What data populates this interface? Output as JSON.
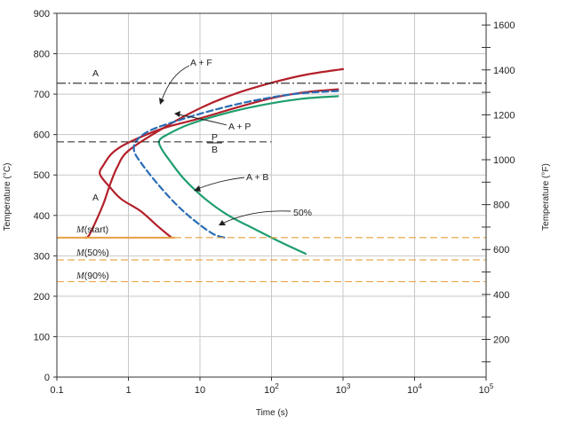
{
  "chart_data": {
    "type": "line",
    "title": "",
    "xlabel": "Time (s)",
    "ylabel": "Temperature (°C)",
    "y2label": "Temperature (°F)",
    "xscale": "log",
    "xlim": [
      0.1,
      100000
    ],
    "ylim": [
      0,
      900
    ],
    "x_ticks": [
      {
        "v": 0.1,
        "base": "0.1",
        "exp": ""
      },
      {
        "v": 1,
        "base": "1",
        "exp": ""
      },
      {
        "v": 10,
        "base": "10",
        "exp": ""
      },
      {
        "v": 100,
        "base": "10",
        "exp": "2"
      },
      {
        "v": 1000,
        "base": "10",
        "exp": "3"
      },
      {
        "v": 10000,
        "base": "10",
        "exp": "4"
      },
      {
        "v": 100000,
        "base": "10",
        "exp": "5"
      }
    ],
    "y_ticks": [
      0,
      100,
      200,
      300,
      400,
      500,
      600,
      700,
      800,
      900
    ],
    "y2_ticks": [
      200,
      400,
      600,
      800,
      1000,
      1200,
      1400,
      1600
    ],
    "grid": true,
    "colors": {
      "red": "#b3202a",
      "blue": "#2a6db5",
      "green": "#1f9e6e",
      "orange": "#e8a040",
      "black": "#222222"
    },
    "series": [
      {
        "key": "af_start",
        "color": "#b3202a",
        "dash": "solid",
        "points": [
          [
            1000,
            762
          ],
          [
            300,
            748
          ],
          [
            100,
            728
          ],
          [
            30,
            700
          ],
          [
            10,
            665
          ],
          [
            3,
            615
          ],
          [
            1,
            560
          ],
          [
            0.7,
            520
          ],
          [
            0.55,
            475
          ],
          [
            0.45,
            430
          ],
          [
            0.35,
            385
          ],
          [
            0.28,
            350
          ],
          [
            0.25,
            345
          ]
        ]
      },
      {
        "key": "ab_start",
        "color": "#b3202a",
        "dash": "solid",
        "points": [
          [
            850,
            712
          ],
          [
            300,
            705
          ],
          [
            100,
            690
          ],
          [
            30,
            665
          ],
          [
            10,
            640
          ],
          [
            3,
            615
          ],
          [
            1,
            580
          ],
          [
            0.6,
            555
          ],
          [
            0.45,
            525
          ],
          [
            0.4,
            502
          ],
          [
            0.55,
            470
          ],
          [
            0.8,
            440
          ],
          [
            1.5,
            410
          ],
          [
            2.5,
            375
          ],
          [
            4,
            345
          ]
        ]
      },
      {
        "key": "ap_end",
        "color": "#2a6db5",
        "dash": "dashed",
        "points": [
          [
            850,
            708
          ],
          [
            200,
            700
          ],
          [
            50,
            682
          ],
          [
            15,
            660
          ],
          [
            5,
            635
          ],
          [
            2,
            610
          ],
          [
            1.3,
            585
          ],
          [
            1.2,
            560
          ],
          [
            1.5,
            530
          ],
          [
            2.5,
            480
          ],
          [
            4.5,
            430
          ],
          [
            8,
            390
          ],
          [
            15,
            355
          ],
          [
            22,
            345
          ]
        ]
      },
      {
        "key": "fifty",
        "color": "#1f9e6e",
        "solid": true,
        "dash": "solid",
        "points": [
          [
            850,
            695
          ],
          [
            250,
            688
          ],
          [
            60,
            670
          ],
          [
            20,
            650
          ],
          [
            7,
            625
          ],
          [
            3.5,
            600
          ],
          [
            2.7,
            585
          ],
          [
            2.9,
            565
          ],
          [
            3.8,
            535
          ],
          [
            6,
            490
          ],
          [
            12,
            440
          ],
          [
            25,
            400
          ],
          [
            60,
            365
          ],
          [
            130,
            335
          ],
          [
            300,
            305
          ]
        ]
      }
    ],
    "reference_lines": [
      {
        "type": "dashdot",
        "y": 727,
        "color": "#222222"
      },
      {
        "type": "dashed",
        "y": 582,
        "color": "#222222",
        "xmax": 100
      },
      {
        "type": "solid",
        "y": 345,
        "color": "#e8a040",
        "xmax": 4.5
      },
      {
        "type": "dashed",
        "y": 345,
        "color": "#e8a040"
      },
      {
        "type": "dashed",
        "y": 290,
        "color": "#e8a040"
      },
      {
        "type": "dashed",
        "y": 236,
        "color": "#e8a040"
      }
    ],
    "annotations": {
      "a_top": "A",
      "af": "A + F",
      "ap": "A + P",
      "p": "P",
      "b": "B",
      "a_low": "A",
      "ab": "A + B",
      "fifty": "50%",
      "m_start_m": "M",
      "m_start_rest": "(start)",
      "m50_m": "M",
      "m50_rest": "(50%)",
      "m90_m": "M",
      "m90_rest": "(90%)"
    }
  }
}
